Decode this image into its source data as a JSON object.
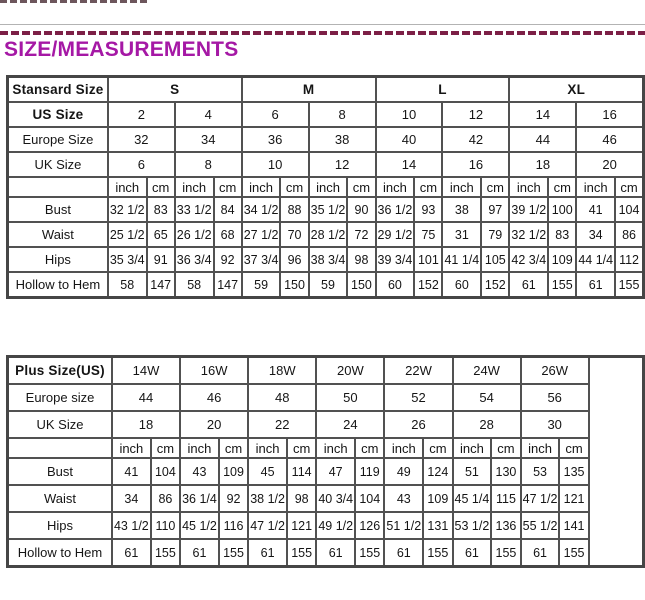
{
  "page": {
    "title": "SIZE/MEASUREMENTS"
  },
  "units": {
    "inch": "inch",
    "cm": "cm"
  },
  "table1": {
    "corner_label": "Stansard Size",
    "size_groups": [
      "S",
      "M",
      "L",
      "XL"
    ],
    "rows_top": [
      {
        "label": "US Size",
        "values": [
          "2",
          "4",
          "6",
          "8",
          "10",
          "12",
          "14",
          "16"
        ]
      },
      {
        "label": "Europe Size",
        "values": [
          "32",
          "34",
          "36",
          "38",
          "40",
          "42",
          "44",
          "46"
        ]
      },
      {
        "label": "UK Size",
        "values": [
          "6",
          "8",
          "10",
          "12",
          "14",
          "16",
          "18",
          "20"
        ]
      }
    ],
    "measure_rows": [
      {
        "label": "Bust",
        "values": [
          "32 1/2",
          "83",
          "33 1/2",
          "84",
          "34 1/2",
          "88",
          "35 1/2",
          "90",
          "36 1/2",
          "93",
          "38",
          "97",
          "39 1/2",
          "100",
          "41",
          "104"
        ]
      },
      {
        "label": "Waist",
        "values": [
          "25 1/2",
          "65",
          "26 1/2",
          "68",
          "27 1/2",
          "70",
          "28 1/2",
          "72",
          "29 1/2",
          "75",
          "31",
          "79",
          "32 1/2",
          "83",
          "34",
          "86"
        ]
      },
      {
        "label": "Hips",
        "values": [
          "35 3/4",
          "91",
          "36 3/4",
          "92",
          "37 3/4",
          "96",
          "38 3/4",
          "98",
          "39 3/4",
          "101",
          "41 1/4",
          "105",
          "42 3/4",
          "109",
          "44 1/4",
          "112"
        ]
      },
      {
        "label": "Hollow to Hem",
        "values": [
          "58",
          "147",
          "58",
          "147",
          "59",
          "150",
          "59",
          "150",
          "60",
          "152",
          "60",
          "152",
          "61",
          "155",
          "61",
          "155"
        ]
      }
    ]
  },
  "table2": {
    "corner_label": "Plus Size(US)",
    "size_groups": [
      "14W",
      "16W",
      "18W",
      "20W",
      "22W",
      "24W",
      "26W"
    ],
    "rows_top": [
      {
        "label": "Europe size",
        "values": [
          "44",
          "46",
          "48",
          "50",
          "52",
          "54",
          "56"
        ]
      },
      {
        "label": "UK Size",
        "values": [
          "18",
          "20",
          "22",
          "24",
          "26",
          "28",
          "30"
        ]
      }
    ],
    "measure_rows": [
      {
        "label": "Bust",
        "values": [
          "41",
          "104",
          "43",
          "109",
          "45",
          "114",
          "47",
          "119",
          "49",
          "124",
          "51",
          "130",
          "53",
          "135"
        ]
      },
      {
        "label": "Waist",
        "values": [
          "34",
          "86",
          "36 1/4",
          "92",
          "38 1/2",
          "98",
          "40 3/4",
          "104",
          "43",
          "109",
          "45 1/4",
          "115",
          "47 1/2",
          "121"
        ]
      },
      {
        "label": "Hips",
        "values": [
          "43 1/2",
          "110",
          "45 1/2",
          "116",
          "47 1/2",
          "121",
          "49 1/2",
          "126",
          "51 1/2",
          "131",
          "53 1/2",
          "136",
          "55 1/2",
          "141"
        ]
      },
      {
        "label": "Hollow to Hem",
        "values": [
          "61",
          "155",
          "61",
          "155",
          "61",
          "155",
          "61",
          "155",
          "61",
          "155",
          "61",
          "155",
          "61",
          "155"
        ]
      }
    ]
  }
}
